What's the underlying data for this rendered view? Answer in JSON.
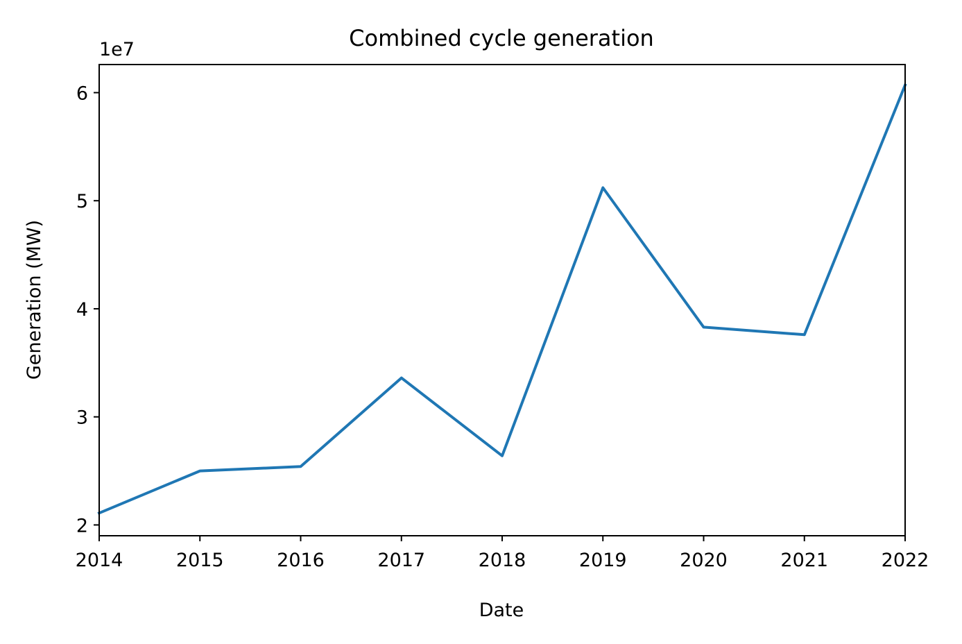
{
  "chart_data": {
    "type": "line",
    "title": "Combined cycle generation",
    "xlabel": "Date",
    "ylabel": "Generation (MW)",
    "y_offset_label": "1e7",
    "x": [
      "2014",
      "2015",
      "2016",
      "2017",
      "2018",
      "2019",
      "2020",
      "2021",
      "2022"
    ],
    "x_ticks": [
      "2014",
      "2015",
      "2016",
      "2017",
      "2018",
      "2019",
      "2020",
      "2021",
      "2022"
    ],
    "y_ticks": [
      2,
      3,
      4,
      5,
      6
    ],
    "y_tick_scale": 10000000,
    "xlim": [
      "2014",
      "2022"
    ],
    "ylim": [
      19000000,
      62600000
    ],
    "grid": false,
    "series": [
      {
        "color": "#1f77b4",
        "values": [
          21100000,
          25000000,
          25400000,
          33600000,
          26400000,
          51200000,
          38300000,
          37600000,
          60700000
        ]
      }
    ]
  }
}
